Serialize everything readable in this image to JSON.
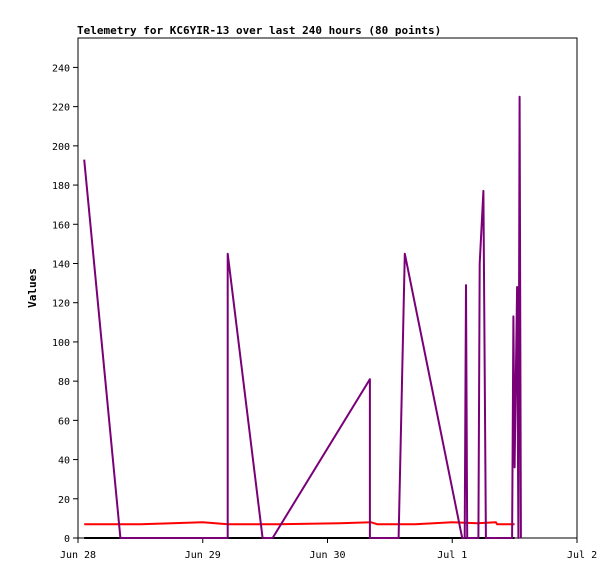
{
  "chart_data": {
    "type": "line",
    "title": "Telemetry for KC6YIR-13 over last 240 hours (80 points)",
    "xlabel": "",
    "ylabel": "Values",
    "ylim": [
      0,
      255
    ],
    "xlim": [
      0,
      4
    ],
    "yticks": [
      0,
      20,
      40,
      60,
      80,
      100,
      120,
      140,
      160,
      180,
      200,
      220,
      240
    ],
    "xticks": [
      {
        "value": 0,
        "label": "Jun 28"
      },
      {
        "value": 1,
        "label": "Jun 29"
      },
      {
        "value": 2,
        "label": "Jun 30"
      },
      {
        "value": 3,
        "label": "Jul 1"
      },
      {
        "value": 4,
        "label": "Jul 2"
      }
    ],
    "grid": false,
    "legend": "none",
    "series": [
      {
        "color": "#000000",
        "points": [
          [
            0.05,
            0
          ],
          [
            3.5,
            0
          ]
        ]
      },
      {
        "color": "#ff0000",
        "points": [
          [
            0.05,
            7
          ],
          [
            0.5,
            7
          ],
          [
            1.0,
            8
          ],
          [
            1.2,
            7
          ],
          [
            1.6,
            7
          ],
          [
            2.1,
            7.5
          ],
          [
            2.35,
            8
          ],
          [
            2.4,
            7
          ],
          [
            2.7,
            7
          ],
          [
            3.0,
            8
          ],
          [
            3.2,
            7.5
          ],
          [
            3.35,
            8
          ],
          [
            3.36,
            7
          ],
          [
            3.5,
            7
          ]
        ]
      },
      {
        "color": "#7a0078",
        "points": [
          [
            0.05,
            193
          ],
          [
            0.34,
            0
          ],
          [
            1.2,
            0
          ],
          [
            1.2,
            145
          ],
          [
            1.48,
            0
          ],
          [
            1.56,
            0
          ],
          [
            2.34,
            81
          ],
          [
            2.34,
            0
          ],
          [
            2.57,
            0
          ],
          [
            2.62,
            145
          ],
          [
            3.08,
            0
          ],
          [
            3.1,
            0
          ],
          [
            3.11,
            129
          ],
          [
            3.12,
            0
          ],
          [
            3.21,
            0
          ],
          [
            3.22,
            140
          ],
          [
            3.25,
            177
          ],
          [
            3.27,
            0
          ],
          [
            3.48,
            0
          ],
          [
            3.49,
            113
          ],
          [
            3.5,
            36
          ],
          [
            3.52,
            128
          ],
          [
            3.53,
            0
          ],
          [
            3.54,
            225
          ],
          [
            3.55,
            0
          ]
        ]
      }
    ]
  }
}
